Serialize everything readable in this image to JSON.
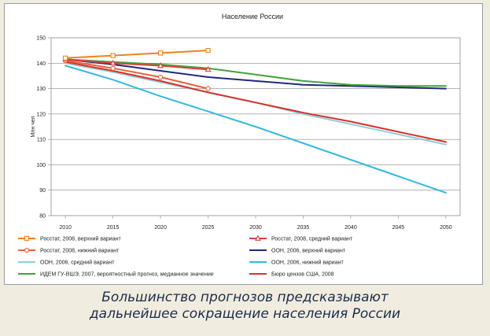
{
  "chart_data": {
    "type": "line",
    "title": "Население России",
    "xlabel": "",
    "ylabel": "Млн чел",
    "x": [
      2010,
      2015,
      2020,
      2025,
      2030,
      2035,
      2040,
      2045,
      2050
    ],
    "xlim": [
      2010,
      2050
    ],
    "ylim": [
      80,
      150
    ],
    "yticks": [
      80,
      90,
      100,
      110,
      120,
      130,
      140,
      150
    ],
    "grid": true,
    "legend_position": "bottom",
    "series": [
      {
        "name": "Росстат, 2008, верхний вариант",
        "color": "#f0821e",
        "marker": "square",
        "x": [
          2010,
          2015,
          2020,
          2025
        ],
        "y": [
          142,
          143,
          144,
          145
        ]
      },
      {
        "name": "Росстат, 2008, средний вариант",
        "color": "#e0403a",
        "marker": "triangle",
        "x": [
          2010,
          2015,
          2020,
          2025
        ],
        "y": [
          141.5,
          140,
          139,
          137.5
        ]
      },
      {
        "name": "Росстат, 2008, нижний вариант",
        "color": "#e8603a",
        "marker": "circle",
        "x": [
          2010,
          2015,
          2020,
          2025
        ],
        "y": [
          141,
          138,
          134.5,
          130
        ]
      },
      {
        "name": "ООН, 2006, верхний вариант",
        "color": "#1f2a7a",
        "marker": "none",
        "x": [
          2010,
          2015,
          2020,
          2025,
          2030,
          2035,
          2040,
          2045,
          2050
        ],
        "y": [
          141.5,
          139.5,
          137,
          134.5,
          133,
          131.5,
          131,
          130.5,
          130
        ]
      },
      {
        "name": "ООН, 2006, средний вариант",
        "color": "#8fcfd6",
        "marker": "none",
        "x": [
          2010,
          2015,
          2020,
          2025,
          2030,
          2035,
          2040,
          2045,
          2050
        ],
        "y": [
          140,
          136.5,
          132.5,
          128.5,
          124.5,
          120,
          116,
          112,
          108
        ]
      },
      {
        "name": "ООН, 2006, нижний вариант",
        "color": "#35b8e0",
        "marker": "none",
        "x": [
          2010,
          2015,
          2020,
          2025,
          2030,
          2035,
          2040,
          2045,
          2050
        ],
        "y": [
          139,
          133.5,
          127,
          121,
          115,
          108.5,
          102,
          95.5,
          89
        ]
      },
      {
        "name": "ИДЕМ ГУ-ВШЭ, 2007, вероятностный прогноз, медианное значение",
        "color": "#43a33a",
        "marker": "none",
        "x": [
          2010,
          2015,
          2020,
          2025,
          2030,
          2035,
          2040,
          2045,
          2050
        ],
        "y": [
          141.5,
          140.5,
          139.5,
          138,
          135.5,
          133,
          131.5,
          131,
          131
        ]
      },
      {
        "name": "Бюро цензов США, 2008",
        "color": "#d9302a",
        "marker": "none",
        "x": [
          2010,
          2015,
          2020,
          2025,
          2030,
          2035,
          2040,
          2045,
          2050
        ],
        "y": [
          140.5,
          137,
          133,
          128.5,
          124.5,
          120.5,
          117,
          113,
          109
        ]
      }
    ]
  },
  "caption": {
    "line1": "Большинство прогнозов предсказывают",
    "line2": "дальнейшее сокращение населения России"
  }
}
